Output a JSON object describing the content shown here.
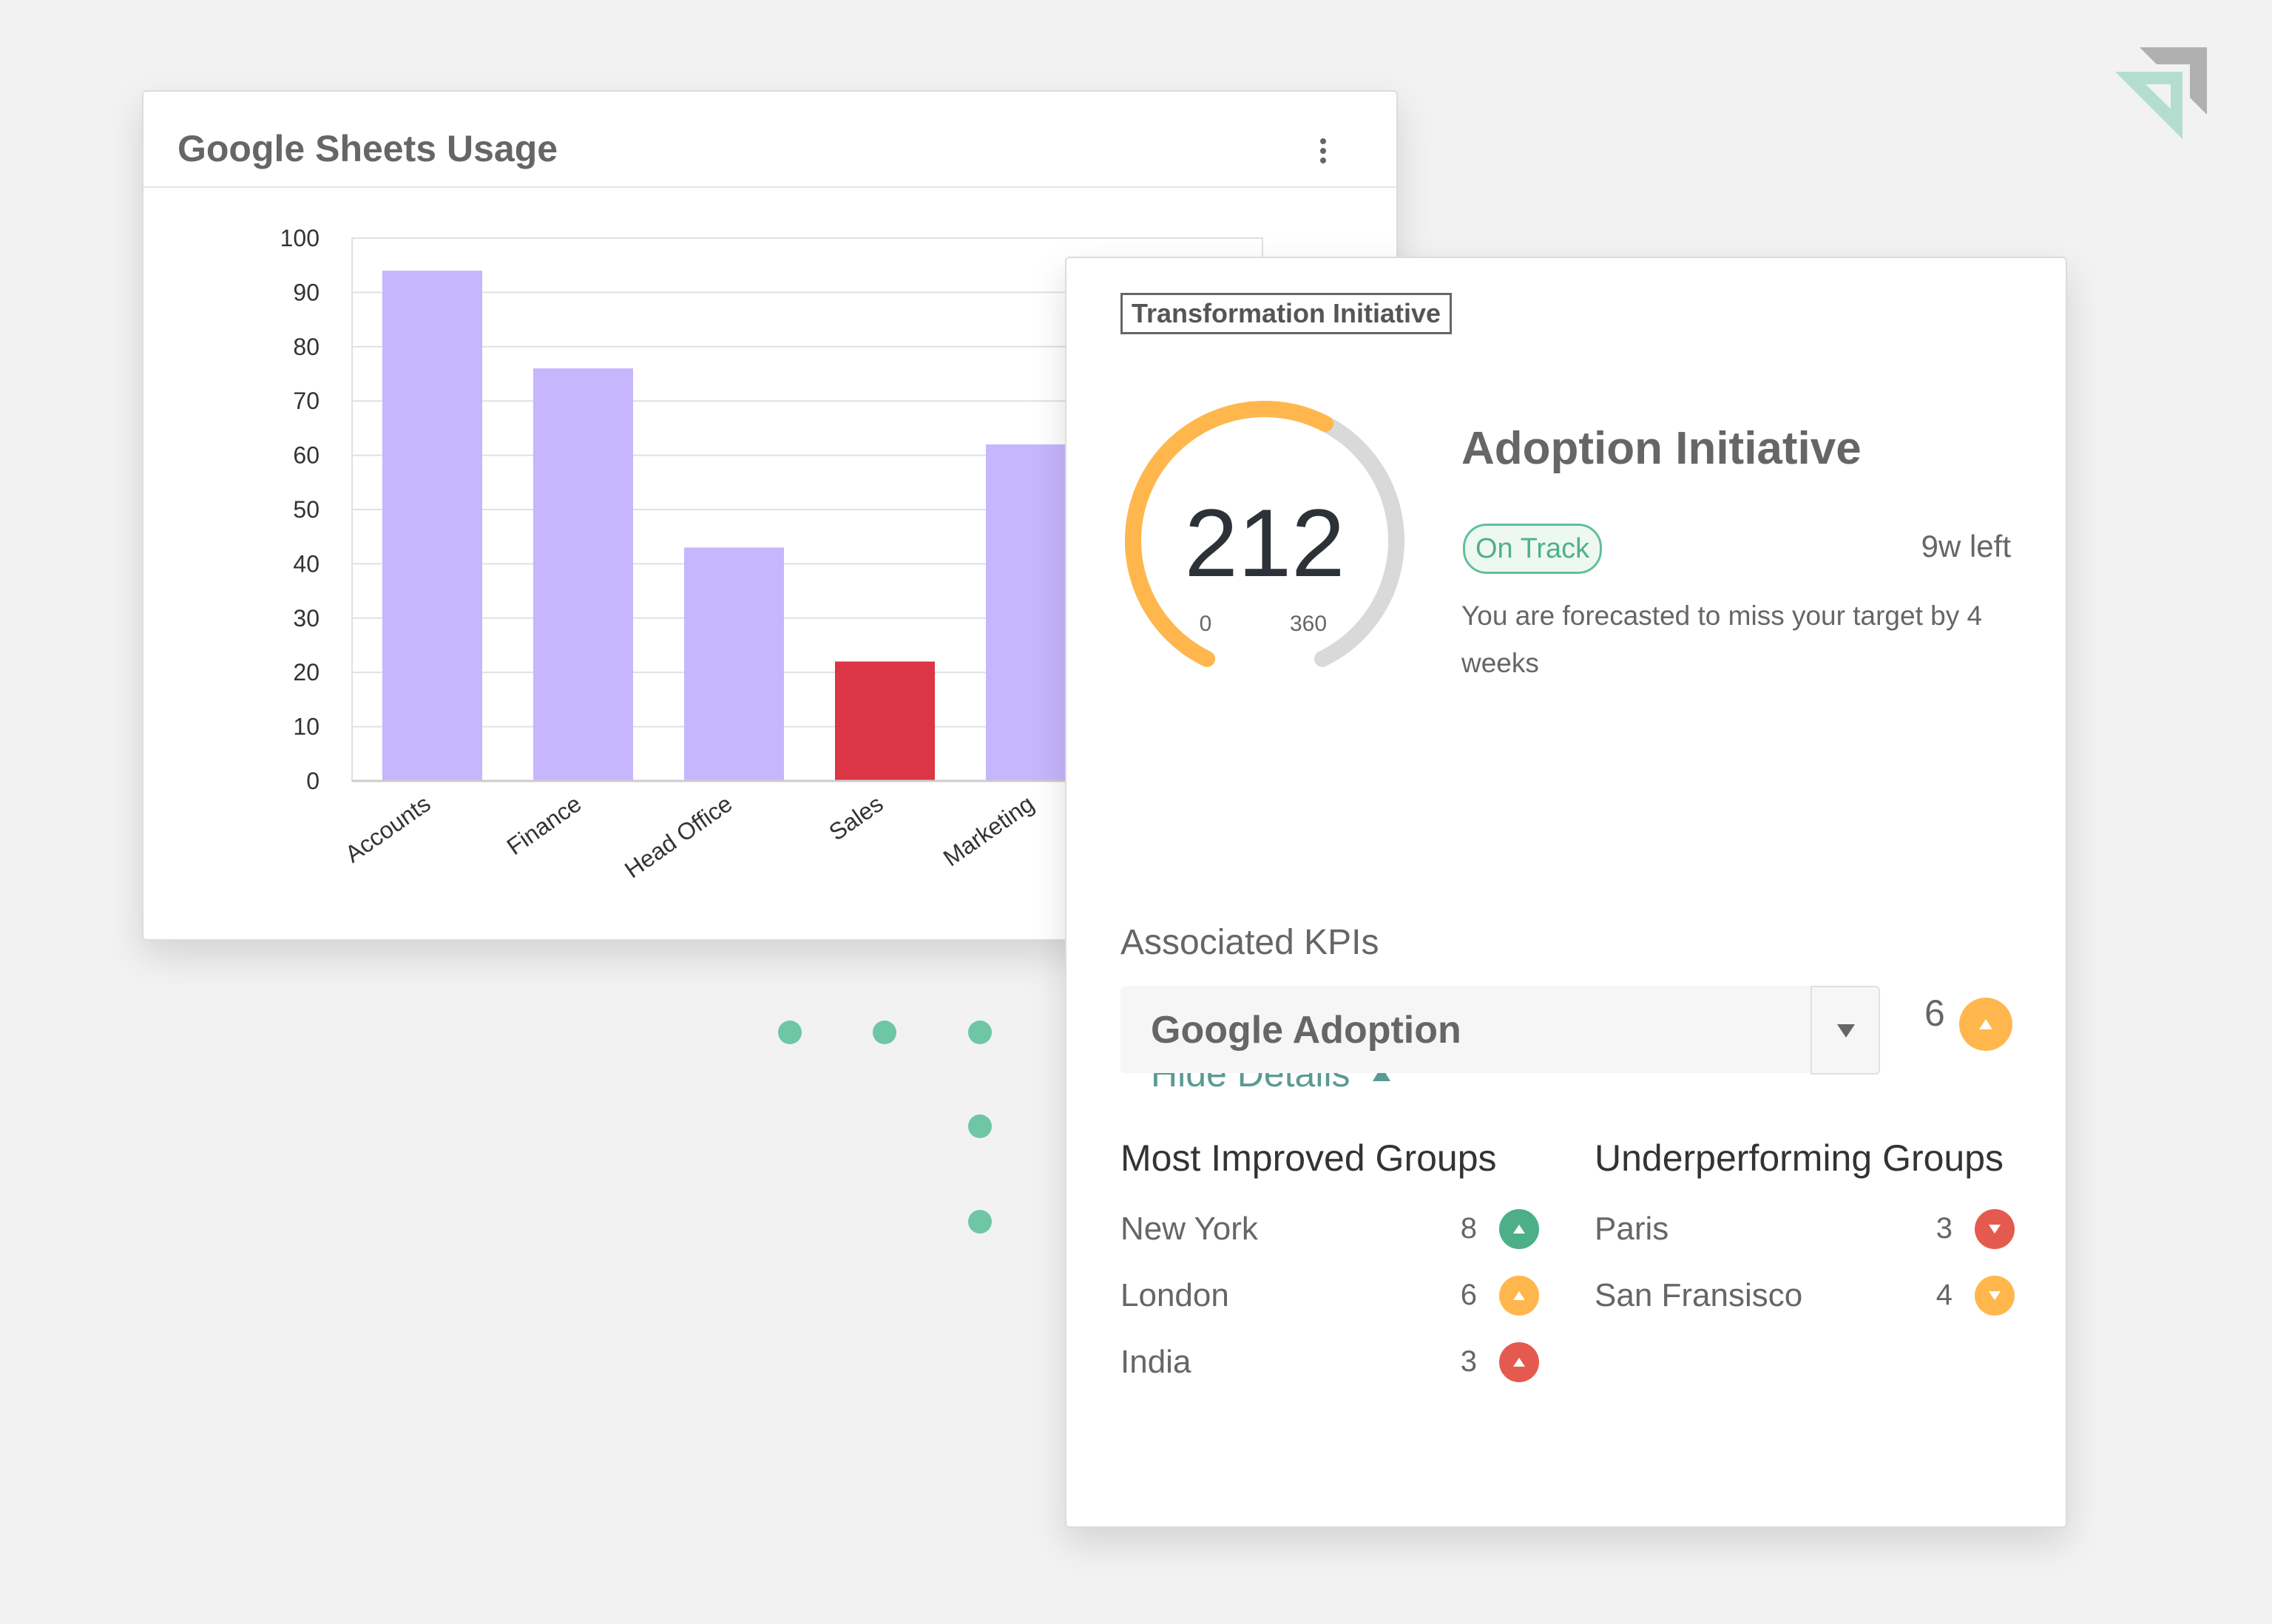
{
  "colors": {
    "bar": "#c6b6fd",
    "bar_highlight": "#dc3545",
    "gauge_value": "#ffb74d",
    "gauge_track": "#d9d9d9",
    "accent_teal": "#5a9a94",
    "green": "#4caf88",
    "orange": "#ffb74d",
    "red": "#e55a4e",
    "dots": "#6ec6a6"
  },
  "usage_card": {
    "title": "Google Sheets Usage",
    "menu_icon": "more-vertical-icon"
  },
  "chart_data": {
    "type": "bar",
    "title": "Google Sheets Usage",
    "categories": [
      "Accounts",
      "Finance",
      "Head Office",
      "Sales",
      "Marketing"
    ],
    "values": [
      94,
      76,
      43,
      22,
      62
    ],
    "highlight": [
      "Sales"
    ],
    "yticks": [
      0,
      10,
      20,
      30,
      40,
      50,
      60,
      70,
      80,
      90,
      100
    ],
    "ylim": [
      0,
      100
    ],
    "grid": true,
    "xlabel": "",
    "ylabel": ""
  },
  "initiative": {
    "tag": "Transformation Initiative",
    "gauge": {
      "value": "212",
      "min": "0",
      "max": "360",
      "fraction": 0.589
    },
    "title": "Adoption Initiative",
    "status": "On Track",
    "time_left": "9w left",
    "forecast": "You are forecasted to miss your target by 4 weeks",
    "hide_details": "Hide Details",
    "kpi_label": "Associated KPIs",
    "kpi_selected": "Google Adoption",
    "kpi_count": "6",
    "kpi_trend": "up",
    "most_improved": {
      "title": "Most Improved Groups",
      "rows": [
        {
          "name": "New York",
          "value": "8",
          "trend": "up",
          "color": "#4caf88"
        },
        {
          "name": "London",
          "value": "6",
          "trend": "up",
          "color": "#ffb74d"
        },
        {
          "name": "India",
          "value": "3",
          "trend": "up",
          "color": "#e55a4e"
        }
      ]
    },
    "underperforming": {
      "title": "Underperforming Groups",
      "rows": [
        {
          "name": "Paris",
          "value": "3",
          "trend": "down",
          "color": "#e55a4e"
        },
        {
          "name": "San Fransisco",
          "value": "4",
          "trend": "down",
          "color": "#ffb74d"
        }
      ]
    }
  }
}
